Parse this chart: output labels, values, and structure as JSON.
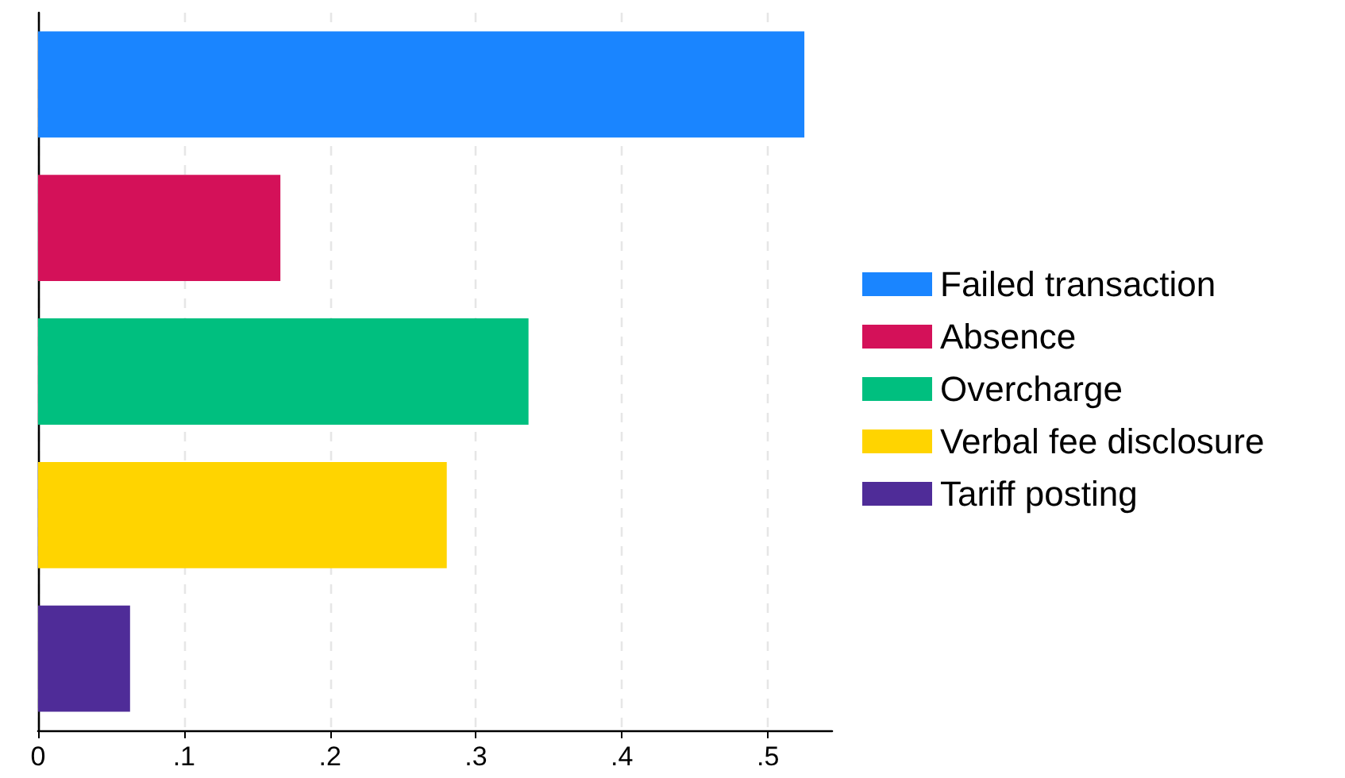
{
  "chart_data": {
    "type": "bar",
    "orientation": "horizontal",
    "categories": [
      null,
      null,
      null,
      null,
      null
    ],
    "series": [
      {
        "name": "Failed transaction",
        "color": "#1a85ff",
        "values": [
          0.525,
          null,
          null,
          null,
          null
        ]
      },
      {
        "name": "Absence",
        "color": "#d41159",
        "values": [
          null,
          0.166,
          null,
          null,
          null
        ]
      },
      {
        "name": "Overcharge",
        "color": "#00bf7f",
        "values": [
          null,
          null,
          0.336,
          null,
          null
        ]
      },
      {
        "name": "Verbal fee disclosure",
        "color": "#ffd400",
        "values": [
          null,
          null,
          null,
          0.28,
          null
        ]
      },
      {
        "name": "Tariff posting",
        "color": "#4f2c98",
        "values": [
          null,
          null,
          null,
          null,
          0.063
        ]
      }
    ],
    "xlim": [
      0,
      0.544
    ],
    "xticks": [
      {
        "value": 0,
        "label": "0"
      },
      {
        "value": 0.1,
        "label": ".1"
      },
      {
        "value": 0.2,
        "label": ".2"
      },
      {
        "value": 0.3,
        "label": ".3"
      },
      {
        "value": 0.4,
        "label": ".4"
      },
      {
        "value": 0.5,
        "label": ".5"
      }
    ],
    "grid": "x",
    "legend": "right"
  }
}
